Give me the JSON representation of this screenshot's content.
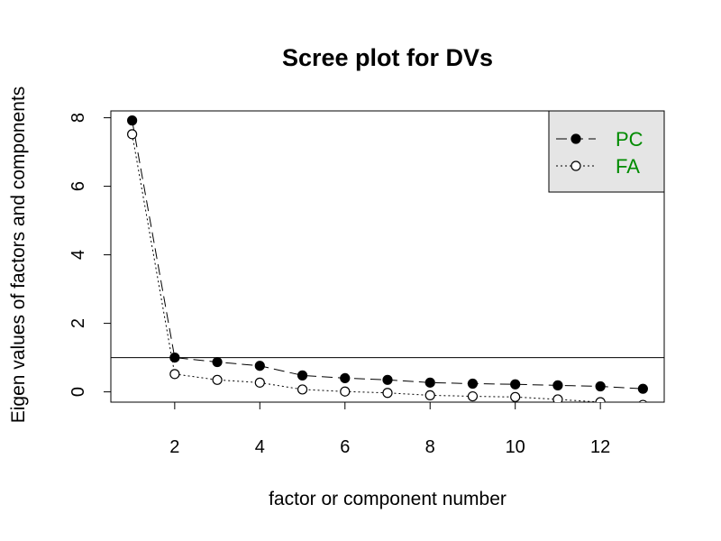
{
  "chart_data": {
    "type": "line",
    "title": "Scree plot for DVs",
    "xlabel": "factor or component number",
    "ylabel": "Eigen values of factors and components",
    "xlim": [
      0.5,
      13.5
    ],
    "ylim": [
      -0.3,
      8.2
    ],
    "x_ticks": [
      2,
      4,
      6,
      8,
      10,
      12
    ],
    "y_ticks": [
      0,
      2,
      4,
      6,
      8
    ],
    "reference_line_y": 1,
    "grid": false,
    "legend": {
      "position": "top-right",
      "background": "#e5e5e5",
      "text_color": "#008b00"
    },
    "x": [
      1,
      2,
      3,
      4,
      5,
      6,
      7,
      8,
      9,
      10,
      11,
      12,
      13
    ],
    "series": [
      {
        "name": "PC",
        "marker": "filled-circle",
        "line_style": "dashed",
        "values": [
          7.92,
          1.0,
          0.87,
          0.76,
          0.48,
          0.4,
          0.35,
          0.27,
          0.24,
          0.22,
          0.19,
          0.16,
          0.09
        ]
      },
      {
        "name": "FA",
        "marker": "open-circle",
        "line_style": "dotted",
        "values": [
          7.52,
          0.52,
          0.35,
          0.27,
          0.07,
          0.01,
          -0.03,
          -0.1,
          -0.13,
          -0.15,
          -0.22,
          -0.3,
          -0.38
        ]
      }
    ]
  }
}
